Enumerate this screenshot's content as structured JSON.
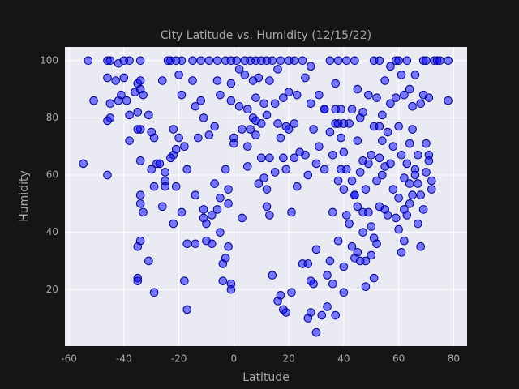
{
  "chart_data": {
    "type": "scatter",
    "title": "City Latitude vs. Humidity (12/15/22)",
    "x_label": "Latitude",
    "y_label": "Humidity",
    "color": "#0000ff",
    "edge_color": "#00008b",
    "grid": true,
    "xlim": [
      -61.5,
      84.9
    ],
    "ylim": [
      0.25,
      104.75
    ],
    "xticks": [
      -60,
      -40,
      -20,
      0,
      20,
      40,
      60,
      80
    ],
    "yticks": [
      20,
      40,
      60,
      80,
      100
    ],
    "x": [
      -54.8,
      -53,
      -51,
      -46,
      -45,
      -46,
      -45,
      -46,
      -45,
      -46,
      -43,
      -42,
      -42,
      -41,
      -40,
      -40,
      -39,
      -38,
      -38,
      -38,
      -36,
      -35,
      -35,
      -34,
      -34,
      -34,
      -33,
      -34,
      -35,
      -34,
      -34,
      -34,
      -33,
      -34,
      -35,
      -35,
      -35,
      -31,
      -30,
      -29,
      -28,
      -31,
      -29,
      -30,
      -29,
      -27,
      -26,
      -25,
      -25,
      -24,
      -23,
      -22,
      -22,
      -21,
      -21,
      -22,
      -21,
      -20,
      -19,
      -19,
      -18,
      -17,
      -17,
      -18,
      -17,
      -15,
      -15,
      -14,
      -14,
      -13,
      -14,
      -12,
      -12,
      -11,
      -11,
      -11,
      -10,
      -9,
      -9,
      -8,
      -7,
      -7,
      -6,
      -6,
      -5,
      -5,
      -5,
      -4,
      -4,
      -3,
      -3,
      -2,
      -2,
      -1,
      -1,
      -1,
      0,
      0,
      -1,
      -1,
      -2,
      -3,
      -6,
      -8,
      -10,
      -19,
      -20,
      -23,
      -25,
      -26,
      1,
      2,
      2,
      3,
      4,
      4,
      5,
      5,
      5,
      6,
      6,
      7,
      7,
      8,
      8,
      8,
      9,
      9,
      10,
      10,
      10,
      11,
      11,
      12,
      12,
      12,
      13,
      13,
      13,
      14,
      14,
      15,
      15,
      16,
      16,
      16,
      17,
      17,
      17,
      18,
      18,
      18,
      19,
      19,
      19,
      20,
      20,
      20,
      21,
      21,
      22,
      22,
      23,
      24,
      25,
      26,
      26,
      27,
      28,
      28,
      28,
      28,
      27,
      27,
      29,
      29,
      30,
      30,
      30,
      31,
      31,
      32,
      33,
      33,
      34,
      34,
      35,
      35,
      35,
      36,
      36,
      36,
      37,
      37,
      37,
      38,
      38,
      38,
      38,
      39,
      39,
      40,
      40,
      40,
      40,
      41,
      41,
      41,
      42,
      42,
      43,
      43,
      43,
      44,
      44,
      45,
      45,
      45,
      46,
      46,
      46,
      47,
      47,
      47,
      48,
      48,
      48,
      49,
      49,
      49,
      50,
      50,
      50,
      51,
      51,
      51,
      51,
      52,
      52,
      52,
      53,
      53,
      53,
      54,
      54,
      54,
      55,
      55,
      56,
      56,
      57,
      57,
      57,
      58,
      58,
      59,
      59,
      59,
      60,
      60,
      60,
      61,
      61,
      61,
      62,
      62,
      62,
      63,
      63,
      63,
      64,
      64,
      64,
      65,
      65,
      65,
      66,
      66,
      67,
      67,
      67,
      68,
      68,
      68,
      69,
      69,
      69,
      70,
      70,
      70,
      71,
      71,
      72,
      72,
      73,
      74,
      78,
      78,
      75,
      60,
      44,
      40,
      37,
      33,
      39,
      47,
      45,
      44,
      53,
      55,
      62,
      64,
      66,
      71,
      22,
      23,
      25,
      12,
      8,
      3
    ],
    "values": [
      64,
      100,
      86,
      100,
      100,
      94,
      85,
      79,
      80,
      60,
      93,
      99,
      86,
      88,
      100,
      94,
      86,
      100,
      81,
      72,
      89,
      92,
      82,
      100,
      93,
      90,
      88,
      76,
      76,
      65,
      53,
      50,
      47,
      37,
      35,
      24,
      23,
      81,
      75,
      73,
      64,
      30,
      19,
      62,
      56,
      64,
      93,
      58,
      56,
      100,
      100,
      76,
      67,
      100,
      69,
      43,
      56,
      95,
      100,
      88,
      70,
      62,
      36,
      23,
      13,
      100,
      93,
      84,
      53,
      73,
      36,
      86,
      100,
      80,
      48,
      45,
      37,
      74,
      100,
      36,
      77,
      57,
      100,
      93,
      88,
      52,
      40,
      29,
      23,
      100,
      62,
      55,
      50,
      100,
      92,
      86,
      73,
      71,
      22,
      20,
      35,
      31,
      48,
      46,
      43,
      47,
      73,
      66,
      61,
      49,
      100,
      84,
      97,
      45,
      100,
      95,
      83,
      70,
      63,
      100,
      76,
      80,
      93,
      100,
      87,
      74,
      94,
      57,
      100,
      78,
      66,
      85,
      59,
      100,
      55,
      49,
      93,
      66,
      46,
      25,
      100,
      85,
      61,
      97,
      78,
      16,
      100,
      73,
      18,
      87,
      66,
      13,
      77,
      62,
      12,
      100,
      89,
      76,
      47,
      19,
      66,
      100,
      56,
      68,
      29,
      67,
      94,
      60,
      85,
      98,
      23,
      12,
      29,
      10,
      22,
      76,
      5,
      64,
      34,
      88,
      70,
      11,
      83,
      62,
      14,
      25,
      30,
      75,
      100,
      47,
      67,
      22,
      83,
      11,
      92,
      100,
      58,
      78,
      37,
      73,
      83,
      55,
      68,
      19,
      28,
      100,
      46,
      62,
      78,
      43,
      83,
      35,
      58,
      53,
      100,
      90,
      72,
      49,
      61,
      30,
      80,
      82,
      65,
      40,
      55,
      30,
      21,
      64,
      47,
      88,
      67,
      42,
      32,
      100,
      77,
      24,
      38,
      58,
      87,
      36,
      66,
      49,
      100,
      72,
      81,
      60,
      93,
      63,
      75,
      46,
      85,
      98,
      64,
      70,
      55,
      87,
      45,
      100,
      77,
      52,
      41,
      95,
      67,
      33,
      88,
      37,
      59,
      100,
      64,
      46,
      90,
      71,
      57,
      84,
      53,
      76,
      62,
      95,
      67,
      57,
      43,
      85,
      53,
      35,
      88,
      48,
      100,
      71,
      61,
      100,
      87,
      65,
      55,
      58,
      100,
      100,
      100,
      86,
      100,
      100,
      53,
      78,
      78,
      83,
      62,
      47,
      33,
      31,
      77,
      48,
      48,
      50,
      60,
      67,
      78,
      88,
      100,
      81,
      79,
      76
    ]
  }
}
